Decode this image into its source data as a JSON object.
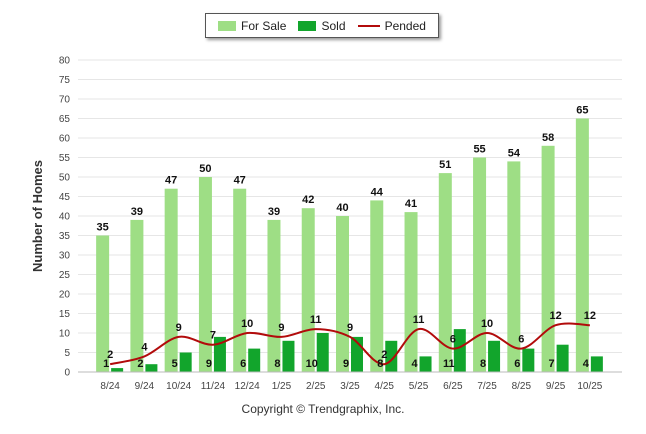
{
  "chart_data": {
    "type": "bar",
    "ylabel": "Number of Homes",
    "ylim": [
      0,
      80
    ],
    "yticks": [
      "0",
      "5",
      "10",
      "15",
      "20",
      "25",
      "30",
      "35",
      "40",
      "45",
      "50",
      "55",
      "60",
      "65",
      "70",
      "75",
      "80"
    ],
    "categories": [
      "8/24",
      "9/24",
      "10/24",
      "11/24",
      "12/24",
      "1/25",
      "2/25",
      "3/25",
      "4/25",
      "5/25",
      "6/25",
      "7/25",
      "8/25",
      "9/25",
      "10/25"
    ],
    "series": [
      {
        "name": "For Sale",
        "type": "bar",
        "color": "#9ede85",
        "values": [
          35,
          39,
          47,
          50,
          47,
          39,
          42,
          40,
          44,
          41,
          51,
          55,
          54,
          58,
          65
        ]
      },
      {
        "name": "Sold",
        "type": "bar",
        "color": "#12a52c",
        "values": [
          1,
          2,
          5,
          9,
          6,
          8,
          10,
          9,
          8,
          4,
          11,
          8,
          6,
          7,
          4
        ]
      },
      {
        "name": "Pended",
        "type": "line",
        "color": "#b20b0b",
        "values": [
          2,
          4,
          9,
          7,
          10,
          9,
          11,
          9,
          2,
          11,
          6,
          10,
          6,
          12,
          12
        ]
      }
    ],
    "legend_position": "top-center",
    "grid": true
  },
  "footer": {
    "copyright": "Copyright © Trendgraphix, Inc."
  }
}
